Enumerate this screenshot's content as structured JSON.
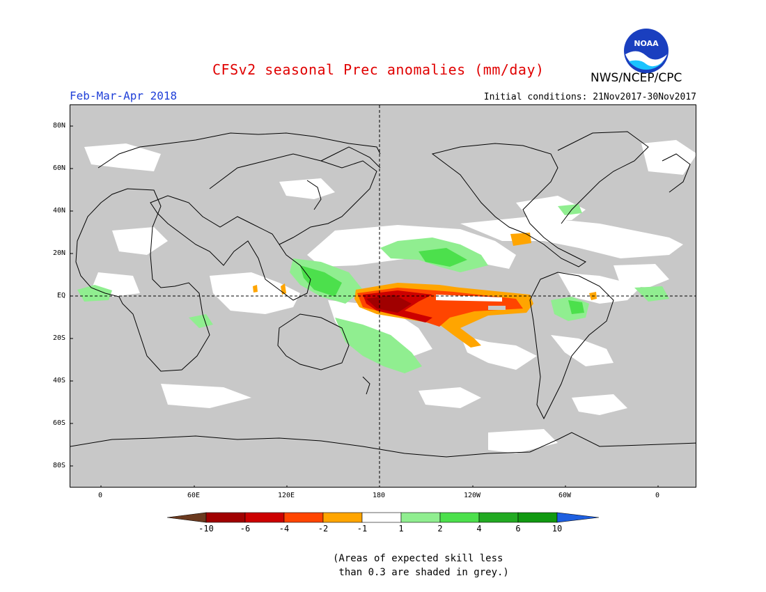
{
  "title": "CFSv2 seasonal Prec anomalies (mm/day)",
  "organization": "NWS/NCEP/CPC",
  "logo_text": "NOAA",
  "season": "Feb-Mar-Apr 2018",
  "initial_conditions": "Initial conditions: 21Nov2017-30Nov2017",
  "lat_labels": [
    "80N",
    "60N",
    "40N",
    "20N",
    "EQ",
    "20S",
    "40S",
    "60S",
    "80S"
  ],
  "lon_labels": [
    "0",
    "60E",
    "120E",
    "180",
    "120W",
    "60W",
    "0"
  ],
  "colorbar": {
    "ticks": [
      "-10",
      "-6",
      "-4",
      "-2",
      "-1",
      "1",
      "2",
      "4",
      "6",
      "10"
    ],
    "colors": [
      "#6b3a1f",
      "#a00000",
      "#cc0000",
      "#ff4500",
      "#ffa500",
      "#ffffff",
      "#90ee90",
      "#4ce04c",
      "#22aa22",
      "#119911",
      "#1e5fe0"
    ]
  },
  "footnote": "(Areas of expected skill less\n than 0.3 are shaded in grey.)",
  "colors": {
    "skill_mask_grey": "#c8c8c8",
    "title_red": "#e00000",
    "season_blue": "#1f3fd8"
  }
}
